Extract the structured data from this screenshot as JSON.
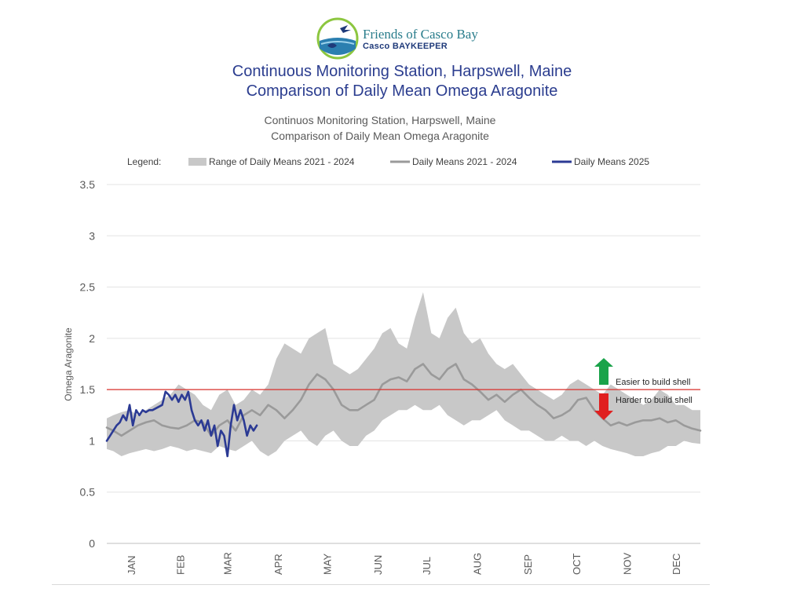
{
  "header": {
    "logo_name": "Friends of Casco Bay",
    "logo_sub": "Casco BAYKEEPER",
    "title_line1": "Continuous Monitoring Station, Harpswell, Maine",
    "title_line2": "Comparison of Daily Mean Omega Aragonite"
  },
  "colors": {
    "title": "#2b3d8f",
    "range_fill": "#c8c8c8",
    "mean_line": "#9a9a9a",
    "line_2025": "#2b3a94",
    "threshold": "#d9312b",
    "arrow_up": "#1aa34a",
    "arrow_down": "#e02020"
  },
  "chart_data": {
    "type": "area",
    "title_line1": "Continuos Monitoring Station, Harpswell, Maine",
    "title_line2": "Comparison of Daily Mean Omega Aragonite",
    "ylabel": "Omega Aragonite",
    "xlabel": "",
    "ylim": [
      0,
      3.5
    ],
    "yticks": [
      0,
      0.5,
      1,
      1.5,
      2,
      2.5,
      3,
      3.5
    ],
    "ytick_labels": [
      "0",
      "0.5",
      "1",
      "1.5",
      "2",
      "2.5",
      "3",
      "3.5"
    ],
    "x_unit": "day of year",
    "xlim": [
      1,
      365
    ],
    "months": [
      "JAN",
      "FEB",
      "MAR",
      "APR",
      "MAY",
      "JUN",
      "JUL",
      "AUG",
      "SEP",
      "OCT",
      "NOV",
      "DEC"
    ],
    "month_mid_days": [
      16,
      46,
      75,
      106,
      136,
      167,
      197,
      228,
      259,
      289,
      320,
      350
    ],
    "grid": "horizontal",
    "legend_label": "Legend:",
    "legend_position": "top",
    "legend": [
      "Range of Daily Means 2021 - 2024",
      "Daily Means 2021 - 2024",
      "Daily Means 2025"
    ],
    "threshold": 1.5,
    "annotations": {
      "easier": "Easier to build shell",
      "harder": "Harder to build shell"
    },
    "series": [
      {
        "name": "Range of Daily Means 2021 - 2024",
        "kind": "band",
        "x": [
          1,
          5,
          10,
          15,
          20,
          25,
          30,
          35,
          40,
          45,
          50,
          55,
          60,
          65,
          70,
          75,
          80,
          85,
          90,
          95,
          100,
          105,
          110,
          115,
          120,
          125,
          130,
          135,
          140,
          145,
          150,
          155,
          160,
          165,
          170,
          175,
          180,
          185,
          190,
          195,
          200,
          205,
          210,
          215,
          220,
          225,
          230,
          235,
          240,
          245,
          250,
          255,
          260,
          265,
          270,
          275,
          280,
          285,
          290,
          295,
          300,
          305,
          310,
          315,
          320,
          325,
          330,
          335,
          340,
          345,
          350,
          355,
          360,
          365
        ],
        "low": [
          0.92,
          0.9,
          0.85,
          0.88,
          0.9,
          0.92,
          0.9,
          0.92,
          0.95,
          0.93,
          0.9,
          0.92,
          0.9,
          0.88,
          0.95,
          0.92,
          0.9,
          0.95,
          1.0,
          0.9,
          0.85,
          0.9,
          1.0,
          1.05,
          1.1,
          1.0,
          0.95,
          1.05,
          1.1,
          1.0,
          0.95,
          0.95,
          1.05,
          1.1,
          1.2,
          1.25,
          1.3,
          1.3,
          1.35,
          1.3,
          1.3,
          1.35,
          1.25,
          1.2,
          1.15,
          1.2,
          1.2,
          1.25,
          1.3,
          1.2,
          1.15,
          1.1,
          1.1,
          1.05,
          1.0,
          1.0,
          1.05,
          1.0,
          1.0,
          0.95,
          1.0,
          0.95,
          0.92,
          0.9,
          0.88,
          0.85,
          0.85,
          0.88,
          0.9,
          0.95,
          0.95,
          1.0,
          0.98,
          0.97
        ],
        "high": [
          1.22,
          1.25,
          1.28,
          1.3,
          1.25,
          1.3,
          1.35,
          1.4,
          1.45,
          1.55,
          1.5,
          1.45,
          1.35,
          1.3,
          1.45,
          1.5,
          1.35,
          1.4,
          1.5,
          1.45,
          1.55,
          1.8,
          1.95,
          1.9,
          1.85,
          2.0,
          2.05,
          2.1,
          1.75,
          1.7,
          1.65,
          1.7,
          1.8,
          1.9,
          2.05,
          2.1,
          1.95,
          1.9,
          2.2,
          2.45,
          2.05,
          2.0,
          2.2,
          2.3,
          2.05,
          1.95,
          2.0,
          1.85,
          1.75,
          1.7,
          1.75,
          1.65,
          1.55,
          1.5,
          1.45,
          1.4,
          1.45,
          1.55,
          1.6,
          1.55,
          1.5,
          1.45,
          1.55,
          1.5,
          1.45,
          1.4,
          1.35,
          1.4,
          1.5,
          1.45,
          1.35,
          1.35,
          1.3,
          1.3
        ]
      },
      {
        "name": "Daily Means 2021 - 2024",
        "kind": "line",
        "x": [
          1,
          5,
          10,
          15,
          20,
          25,
          30,
          35,
          40,
          45,
          50,
          55,
          60,
          65,
          70,
          75,
          80,
          85,
          90,
          95,
          100,
          105,
          110,
          115,
          120,
          125,
          130,
          135,
          140,
          145,
          150,
          155,
          160,
          165,
          170,
          175,
          180,
          185,
          190,
          195,
          200,
          205,
          210,
          215,
          220,
          225,
          230,
          235,
          240,
          245,
          250,
          255,
          260,
          265,
          270,
          275,
          280,
          285,
          290,
          295,
          300,
          305,
          310,
          315,
          320,
          325,
          330,
          335,
          340,
          345,
          350,
          355,
          360,
          365
        ],
        "y": [
          1.13,
          1.1,
          1.05,
          1.1,
          1.15,
          1.18,
          1.2,
          1.15,
          1.13,
          1.12,
          1.15,
          1.2,
          1.18,
          1.05,
          1.15,
          1.2,
          1.1,
          1.25,
          1.3,
          1.25,
          1.35,
          1.3,
          1.22,
          1.3,
          1.4,
          1.55,
          1.65,
          1.6,
          1.5,
          1.35,
          1.3,
          1.3,
          1.35,
          1.4,
          1.55,
          1.6,
          1.62,
          1.58,
          1.7,
          1.75,
          1.65,
          1.6,
          1.7,
          1.75,
          1.6,
          1.55,
          1.48,
          1.4,
          1.45,
          1.38,
          1.45,
          1.5,
          1.42,
          1.35,
          1.3,
          1.22,
          1.25,
          1.3,
          1.4,
          1.42,
          1.3,
          1.22,
          1.15,
          1.18,
          1.15,
          1.18,
          1.2,
          1.2,
          1.22,
          1.18,
          1.2,
          1.15,
          1.12,
          1.1
        ]
      },
      {
        "name": "Daily Means 2025",
        "kind": "line",
        "x": [
          1,
          3,
          5,
          7,
          9,
          11,
          13,
          15,
          17,
          19,
          21,
          23,
          25,
          27,
          29,
          35,
          37,
          39,
          41,
          43,
          45,
          47,
          49,
          51,
          53,
          55,
          57,
          59,
          61,
          63,
          65,
          67,
          69,
          71,
          73,
          75,
          77,
          79,
          81,
          83,
          85,
          87,
          89,
          91,
          93
        ],
        "y": [
          1.0,
          1.05,
          1.1,
          1.15,
          1.18,
          1.25,
          1.2,
          1.35,
          1.15,
          1.3,
          1.25,
          1.3,
          1.28,
          1.3,
          1.3,
          1.35,
          1.48,
          1.45,
          1.4,
          1.45,
          1.38,
          1.45,
          1.4,
          1.48,
          1.3,
          1.2,
          1.15,
          1.2,
          1.1,
          1.2,
          1.05,
          1.15,
          0.95,
          1.1,
          1.05,
          0.85,
          1.15,
          1.35,
          1.2,
          1.3,
          1.2,
          1.05,
          1.15,
          1.1,
          1.15
        ]
      }
    ]
  }
}
